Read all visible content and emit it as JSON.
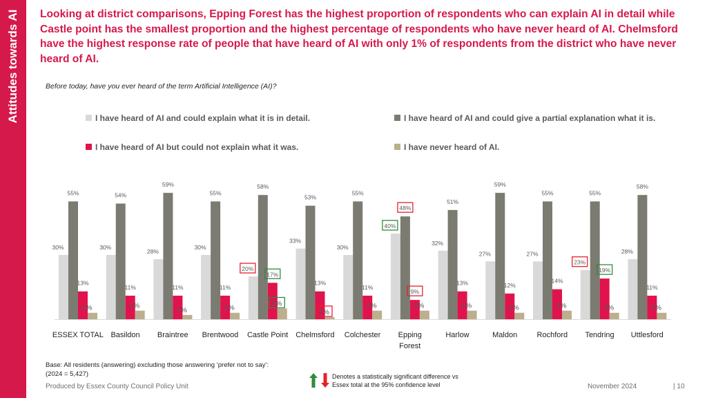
{
  "side_title": "Attitudes towards AI",
  "headline": "Looking at district comparisons, Epping Forest has the highest proportion of respondents who can explain AI in detail while Castle point has the smallest proportion and the highest percentage of respondents who have never heard of AI. Chelmsford have the highest response rate of people that have heard of AI with only 1% of respondents from the district who have never heard of AI.",
  "question": "Before today, have you ever heard of the term Artificial Intelligence (AI)?",
  "base_note_line1": "Base: All residents (answering) excluding those answering ‘prefer not to say’:",
  "base_note_line2": "(2024 = 5,427)",
  "significance_line1": "Denotes a statistically significant difference vs",
  "significance_line2": "Essex total at the 95% confidence level",
  "footer_left": "Produced by Essex County Council Policy Unit",
  "footer_date": "November 2024",
  "footer_page": "|  10",
  "colors": {
    "brand": "#d6194b",
    "detail": "#d9d9d9",
    "partial": "#7b7b72",
    "could_not": "#e0134d",
    "never": "#bcaf8e",
    "sig_up": "#2e8b3a",
    "sig_down": "#e8202b"
  },
  "chart_data": {
    "type": "bar",
    "title": "",
    "xlabel": "",
    "ylabel": "",
    "ylim": [
      0,
      62
    ],
    "grid": false,
    "legend_position": "top",
    "categories": [
      [
        "ESSEX TOTAL"
      ],
      [
        "Basildon"
      ],
      [
        "Braintree"
      ],
      [
        "Brentwood"
      ],
      [
        "Castle Point"
      ],
      [
        "Chelmsford"
      ],
      [
        "Colchester"
      ],
      [
        "Epping",
        "Forest"
      ],
      [
        "Harlow"
      ],
      [
        "Maldon"
      ],
      [
        "Rochford"
      ],
      [
        "Tendring"
      ],
      [
        "Uttlesford"
      ]
    ],
    "series": [
      {
        "name": "I have heard of AI and could explain what it is in detail.",
        "color": "#d9d9d9",
        "values": [
          30,
          30,
          28,
          30,
          20,
          33,
          30,
          40,
          32,
          27,
          27,
          23,
          28
        ],
        "significance": [
          "",
          "",
          "",
          "",
          "down",
          "",
          "",
          "up",
          "",
          "",
          "",
          "down",
          ""
        ]
      },
      {
        "name": "I have heard of AI and could give a partial explanation what it is.",
        "color": "#7b7b72",
        "values": [
          55,
          54,
          59,
          55,
          58,
          53,
          55,
          48,
          51,
          59,
          55,
          55,
          58
        ],
        "significance": [
          "",
          "",
          "",
          "",
          "",
          "",
          "",
          "down",
          "",
          "",
          "",
          "",
          ""
        ]
      },
      {
        "name": "I have heard of AI but could not explain what it was.",
        "color": "#e0134d",
        "values": [
          13,
          11,
          11,
          11,
          17,
          13,
          11,
          9,
          13,
          12,
          14,
          19,
          11
        ],
        "significance": [
          "",
          "",
          "",
          "",
          "up",
          "",
          "",
          "down",
          "",
          "",
          "",
          "up",
          ""
        ]
      },
      {
        "name": "I have never heard of AI.",
        "color": "#bcaf8e",
        "values": [
          3,
          4,
          2,
          3,
          5,
          1,
          4,
          4,
          4,
          3,
          4,
          3,
          3
        ],
        "significance": [
          "",
          "",
          "",
          "",
          "up",
          "down",
          "",
          "",
          "",
          "",
          "",
          "",
          ""
        ]
      }
    ],
    "value_suffix": "%"
  }
}
